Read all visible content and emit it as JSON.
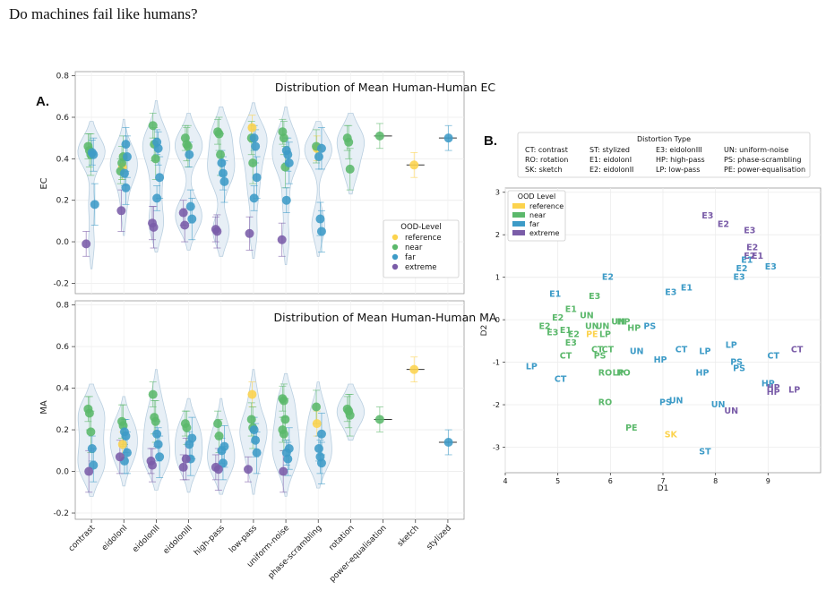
{
  "title": "Do machines fail like humans?",
  "colors": {
    "reference": "#fcd34d",
    "near": "#5bb86b",
    "far": "#3d9bc7",
    "extreme": "#7a5ca8",
    "violin": "#e3ecf5",
    "violin_edge": "#b9cfe0"
  },
  "panel_a": {
    "label": "A.",
    "categories": [
      "contrast",
      "eidolonI",
      "eidolonII",
      "eidolonIII",
      "high-pass",
      "low-pass",
      "uniform-noise",
      "phase-scrambling",
      "rotation",
      "power-equalisation",
      "sketch",
      "stylized"
    ],
    "legend_title": "OOD-Level",
    "legend_items": [
      "reference",
      "near",
      "far",
      "extreme"
    ]
  },
  "panel_b": {
    "label": "B.",
    "distortion_title": "Distortion Type",
    "distortion_items": [
      "CT: contrast",
      "ST: stylized",
      "E3: eidolonIII",
      "UN: uniform-noise",
      "RO: rotation",
      "E1: eidolonI",
      "HP: high-pass",
      "PS: phase-scrambling",
      "SK: sketch",
      "E2: eidolonII",
      "LP: low-pass",
      "PE: power-equalisation"
    ],
    "legend_title": "OOD Level",
    "legend_items": [
      "reference",
      "near",
      "far",
      "extreme"
    ]
  },
  "chart_data": [
    {
      "type": "violin",
      "title": "Distribution of Mean Human-Human EC",
      "ylabel": "EC",
      "ylim": [
        -0.25,
        0.82
      ],
      "yticks": [
        -0.2,
        0.0,
        0.2,
        0.4,
        0.6,
        0.8
      ],
      "grid": true,
      "legend_position": "lower-right",
      "categories": [
        "contrast",
        "eidolonI",
        "eidolonII",
        "eidolonIII",
        "high-pass",
        "low-pass",
        "uniform-noise",
        "phase-scrambling",
        "rotation",
        "power-equalisation",
        "sketch",
        "stylized"
      ],
      "points": [
        {
          "category": "contrast",
          "level": "near",
          "values": [
            0.46,
            0.44,
            0.42
          ]
        },
        {
          "category": "contrast",
          "level": "far",
          "values": [
            0.43,
            0.42,
            0.18
          ]
        },
        {
          "category": "contrast",
          "level": "extreme",
          "values": [
            -0.01
          ]
        },
        {
          "category": "eidolonI",
          "level": "reference",
          "values": [
            0.36
          ]
        },
        {
          "category": "eidolonI",
          "level": "near",
          "values": [
            0.38,
            0.41,
            0.34
          ]
        },
        {
          "category": "eidolonI",
          "level": "far",
          "values": [
            0.47,
            0.41,
            0.33,
            0.26
          ]
        },
        {
          "category": "eidolonI",
          "level": "extreme",
          "values": [
            0.15
          ]
        },
        {
          "category": "eidolonII",
          "level": "near",
          "values": [
            0.56,
            0.47,
            0.4
          ]
        },
        {
          "category": "eidolonII",
          "level": "far",
          "values": [
            0.48,
            0.45,
            0.31,
            0.21
          ]
        },
        {
          "category": "eidolonII",
          "level": "extreme",
          "values": [
            0.09,
            0.07
          ]
        },
        {
          "category": "eidolonIII",
          "level": "near",
          "values": [
            0.5,
            0.47,
            0.46
          ]
        },
        {
          "category": "eidolonIII",
          "level": "far",
          "values": [
            0.42,
            0.17,
            0.11
          ]
        },
        {
          "category": "eidolonIII",
          "level": "extreme",
          "values": [
            0.14,
            0.08
          ]
        },
        {
          "category": "high-pass",
          "level": "near",
          "values": [
            0.53,
            0.52,
            0.42
          ]
        },
        {
          "category": "high-pass",
          "level": "far",
          "values": [
            0.38,
            0.33,
            0.29
          ]
        },
        {
          "category": "high-pass",
          "level": "extreme",
          "values": [
            0.06,
            0.05
          ]
        },
        {
          "category": "low-pass",
          "level": "reference",
          "values": [
            0.55
          ]
        },
        {
          "category": "low-pass",
          "level": "near",
          "values": [
            0.5,
            0.38
          ]
        },
        {
          "category": "low-pass",
          "level": "far",
          "values": [
            0.5,
            0.46,
            0.31,
            0.21
          ]
        },
        {
          "category": "low-pass",
          "level": "extreme",
          "values": [
            0.04
          ]
        },
        {
          "category": "uniform-noise",
          "level": "near",
          "values": [
            0.53,
            0.5,
            0.36
          ]
        },
        {
          "category": "uniform-noise",
          "level": "far",
          "values": [
            0.44,
            0.42,
            0.38,
            0.2
          ]
        },
        {
          "category": "uniform-noise",
          "level": "extreme",
          "values": [
            0.01
          ]
        },
        {
          "category": "phase-scrambling",
          "level": "reference",
          "values": [
            0.45
          ]
        },
        {
          "category": "phase-scrambling",
          "level": "near",
          "values": [
            0.46
          ]
        },
        {
          "category": "phase-scrambling",
          "level": "far",
          "values": [
            0.45,
            0.41,
            0.11,
            0.05
          ]
        },
        {
          "category": "rotation",
          "level": "near",
          "values": [
            0.5,
            0.48,
            0.35
          ]
        },
        {
          "category": "power-equalisation",
          "level": "near",
          "values": [
            0.51
          ]
        },
        {
          "category": "sketch",
          "level": "reference",
          "values": [
            0.37
          ]
        },
        {
          "category": "stylized",
          "level": "far",
          "values": [
            0.5
          ]
        }
      ]
    },
    {
      "type": "violin",
      "title": "Distribution of Mean Human-Human MA",
      "ylabel": "MA",
      "ylim": [
        -0.23,
        0.82
      ],
      "yticks": [
        -0.2,
        0.0,
        0.2,
        0.4,
        0.6,
        0.8
      ],
      "grid": true,
      "categories": [
        "contrast",
        "eidolonI",
        "eidolonII",
        "eidolonIII",
        "high-pass",
        "low-pass",
        "uniform-noise",
        "phase-scrambling",
        "rotation",
        "power-equalisation",
        "sketch",
        "stylized"
      ],
      "points": [
        {
          "category": "contrast",
          "level": "near",
          "values": [
            0.3,
            0.28,
            0.19
          ]
        },
        {
          "category": "contrast",
          "level": "far",
          "values": [
            0.11,
            0.03
          ]
        },
        {
          "category": "contrast",
          "level": "extreme",
          "values": [
            0.0
          ]
        },
        {
          "category": "eidolonI",
          "level": "reference",
          "values": [
            0.13
          ]
        },
        {
          "category": "eidolonI",
          "level": "near",
          "values": [
            0.24,
            0.22
          ]
        },
        {
          "category": "eidolonI",
          "level": "far",
          "values": [
            0.19,
            0.17,
            0.09,
            0.05
          ]
        },
        {
          "category": "eidolonI",
          "level": "extreme",
          "values": [
            0.07
          ]
        },
        {
          "category": "eidolonII",
          "level": "near",
          "values": [
            0.37,
            0.26,
            0.24
          ]
        },
        {
          "category": "eidolonII",
          "level": "far",
          "values": [
            0.18,
            0.13,
            0.07
          ]
        },
        {
          "category": "eidolonII",
          "level": "extreme",
          "values": [
            0.05,
            0.03
          ]
        },
        {
          "category": "eidolonIII",
          "level": "near",
          "values": [
            0.23,
            0.21
          ]
        },
        {
          "category": "eidolonIII",
          "level": "far",
          "values": [
            0.16,
            0.13,
            0.06
          ]
        },
        {
          "category": "eidolonIII",
          "level": "extreme",
          "values": [
            0.06,
            0.02
          ]
        },
        {
          "category": "high-pass",
          "level": "near",
          "values": [
            0.23,
            0.17
          ]
        },
        {
          "category": "high-pass",
          "level": "far",
          "values": [
            0.12,
            0.1,
            0.04
          ]
        },
        {
          "category": "high-pass",
          "level": "extreme",
          "values": [
            0.01,
            0.02
          ]
        },
        {
          "category": "low-pass",
          "level": "reference",
          "values": [
            0.37
          ]
        },
        {
          "category": "low-pass",
          "level": "near",
          "values": [
            0.25,
            0.21
          ]
        },
        {
          "category": "low-pass",
          "level": "far",
          "values": [
            0.2,
            0.15,
            0.09
          ]
        },
        {
          "category": "low-pass",
          "level": "extreme",
          "values": [
            0.01
          ]
        },
        {
          "category": "uniform-noise",
          "level": "near",
          "values": [
            0.35,
            0.34,
            0.25,
            0.2,
            0.18
          ]
        },
        {
          "category": "uniform-noise",
          "level": "far",
          "values": [
            0.11,
            0.09,
            0.06
          ]
        },
        {
          "category": "uniform-noise",
          "level": "extreme",
          "values": [
            0.0
          ]
        },
        {
          "category": "phase-scrambling",
          "level": "reference",
          "values": [
            0.23
          ]
        },
        {
          "category": "phase-scrambling",
          "level": "near",
          "values": [
            0.31
          ]
        },
        {
          "category": "phase-scrambling",
          "level": "far",
          "values": [
            0.18,
            0.11,
            0.07,
            0.04
          ]
        },
        {
          "category": "rotation",
          "level": "near",
          "values": [
            0.3,
            0.29,
            0.27
          ]
        },
        {
          "category": "power-equalisation",
          "level": "near",
          "values": [
            0.25
          ]
        },
        {
          "category": "sketch",
          "level": "reference",
          "values": [
            0.49
          ]
        },
        {
          "category": "stylized",
          "level": "far",
          "values": [
            0.14
          ]
        }
      ]
    },
    {
      "type": "scatter",
      "xlabel": "D1",
      "ylabel": "D2",
      "xlim": [
        4,
        10
      ],
      "ylim": [
        -3.6,
        3.1
      ],
      "xticks": [
        4,
        5,
        6,
        7,
        8,
        9
      ],
      "yticks": [
        -3,
        -2,
        -1,
        0,
        1,
        2,
        3
      ],
      "grid": true,
      "legend_position": "top-left",
      "points": [
        {
          "label": "E3",
          "level": "extreme",
          "x": 7.85,
          "y": 2.45
        },
        {
          "label": "E2",
          "level": "extreme",
          "x": 8.15,
          "y": 2.25
        },
        {
          "label": "E3",
          "level": "extreme",
          "x": 8.65,
          "y": 2.1
        },
        {
          "label": "E2",
          "level": "extreme",
          "x": 8.7,
          "y": 1.7
        },
        {
          "label": "E1",
          "level": "extreme",
          "x": 8.8,
          "y": 1.5
        },
        {
          "label": "E2",
          "level": "extreme",
          "x": 8.65,
          "y": 1.5
        },
        {
          "label": "E1",
          "level": "far",
          "x": 8.6,
          "y": 1.4
        },
        {
          "label": "E2",
          "level": "far",
          "x": 8.5,
          "y": 1.2
        },
        {
          "label": "E3",
          "level": "far",
          "x": 9.05,
          "y": 1.25
        },
        {
          "label": "E3",
          "level": "far",
          "x": 8.45,
          "y": 1.0
        },
        {
          "label": "E1",
          "level": "far",
          "x": 7.45,
          "y": 0.75
        },
        {
          "label": "E3",
          "level": "far",
          "x": 7.15,
          "y": 0.65
        },
        {
          "label": "E2",
          "level": "far",
          "x": 5.95,
          "y": 1.0
        },
        {
          "label": "E1",
          "level": "far",
          "x": 4.95,
          "y": 0.6
        },
        {
          "label": "E3",
          "level": "near",
          "x": 5.7,
          "y": 0.55
        },
        {
          "label": "E1",
          "level": "near",
          "x": 5.25,
          "y": 0.25
        },
        {
          "label": "E2",
          "level": "near",
          "x": 5.0,
          "y": 0.05
        },
        {
          "label": "UN",
          "level": "near",
          "x": 5.55,
          "y": 0.1
        },
        {
          "label": "E2",
          "level": "near",
          "x": 4.75,
          "y": -0.15
        },
        {
          "label": "E3",
          "level": "near",
          "x": 4.9,
          "y": -0.3
        },
        {
          "label": "E1",
          "level": "near",
          "x": 5.15,
          "y": -0.25
        },
        {
          "label": "E2",
          "level": "near",
          "x": 5.3,
          "y": -0.35
        },
        {
          "label": "E3",
          "level": "near",
          "x": 5.25,
          "y": -0.55
        },
        {
          "label": "UN",
          "level": "near",
          "x": 5.65,
          "y": -0.15
        },
        {
          "label": "UN",
          "level": "near",
          "x": 5.85,
          "y": -0.15
        },
        {
          "label": "PE",
          "level": "reference",
          "x": 5.65,
          "y": -0.35
        },
        {
          "label": "LP",
          "level": "near",
          "x": 5.9,
          "y": -0.35
        },
        {
          "label": "UN",
          "level": "near",
          "x": 6.15,
          "y": -0.05
        },
        {
          "label": "HP",
          "level": "near",
          "x": 6.25,
          "y": -0.05
        },
        {
          "label": "HP",
          "level": "near",
          "x": 6.45,
          "y": -0.2
        },
        {
          "label": "PS",
          "level": "far",
          "x": 6.75,
          "y": -0.15
        },
        {
          "label": "CT",
          "level": "near",
          "x": 5.75,
          "y": -0.7
        },
        {
          "label": "CT",
          "level": "near",
          "x": 5.95,
          "y": -0.7
        },
        {
          "label": "CT",
          "level": "near",
          "x": 5.15,
          "y": -0.85
        },
        {
          "label": "PS",
          "level": "near",
          "x": 5.8,
          "y": -0.85
        },
        {
          "label": "UN",
          "level": "far",
          "x": 6.5,
          "y": -0.75
        },
        {
          "label": "HP",
          "level": "far",
          "x": 6.95,
          "y": -0.95
        },
        {
          "label": "CT",
          "level": "far",
          "x": 7.35,
          "y": -0.7
        },
        {
          "label": "LP",
          "level": "far",
          "x": 7.8,
          "y": -0.75
        },
        {
          "label": "LP",
          "level": "far",
          "x": 8.3,
          "y": -0.6
        },
        {
          "label": "CT",
          "level": "far",
          "x": 9.1,
          "y": -0.85
        },
        {
          "label": "CT",
          "level": "extreme",
          "x": 9.55,
          "y": -0.7
        },
        {
          "label": "PS",
          "level": "far",
          "x": 8.4,
          "y": -1.0
        },
        {
          "label": "PS",
          "level": "far",
          "x": 8.45,
          "y": -1.15
        },
        {
          "label": "HP",
          "level": "far",
          "x": 7.75,
          "y": -1.25
        },
        {
          "label": "HP",
          "level": "far",
          "x": 9.0,
          "y": -1.5
        },
        {
          "label": "HP",
          "level": "extreme",
          "x": 9.1,
          "y": -1.6
        },
        {
          "label": "HP",
          "level": "extreme",
          "x": 9.1,
          "y": -1.7
        },
        {
          "label": "LP",
          "level": "extreme",
          "x": 9.5,
          "y": -1.65
        },
        {
          "label": "LP",
          "level": "far",
          "x": 4.5,
          "y": -1.1
        },
        {
          "label": "CT",
          "level": "far",
          "x": 5.05,
          "y": -1.4
        },
        {
          "label": "RO",
          "level": "near",
          "x": 5.9,
          "y": -1.25
        },
        {
          "label": "LP",
          "level": "near",
          "x": 6.15,
          "y": -1.25
        },
        {
          "label": "RO",
          "level": "near",
          "x": 6.25,
          "y": -1.25
        },
        {
          "label": "RO",
          "level": "near",
          "x": 5.9,
          "y": -1.95
        },
        {
          "label": "UN",
          "level": "far",
          "x": 7.25,
          "y": -1.9
        },
        {
          "label": "PS",
          "level": "far",
          "x": 7.05,
          "y": -1.95
        },
        {
          "label": "UN",
          "level": "far",
          "x": 8.05,
          "y": -2.0
        },
        {
          "label": "UN",
          "level": "extreme",
          "x": 8.3,
          "y": -2.15
        },
        {
          "label": "PE",
          "level": "near",
          "x": 6.4,
          "y": -2.55
        },
        {
          "label": "SK",
          "level": "reference",
          "x": 7.15,
          "y": -2.7
        },
        {
          "label": "ST",
          "level": "far",
          "x": 7.8,
          "y": -3.1
        }
      ]
    }
  ]
}
